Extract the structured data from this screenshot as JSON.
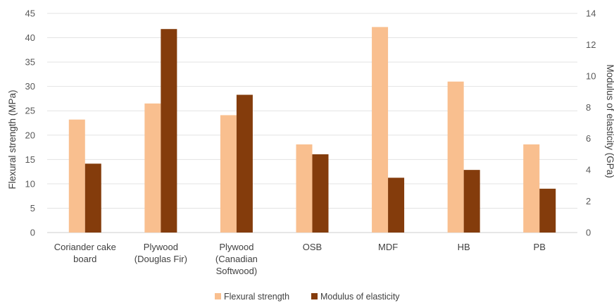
{
  "chart_data": {
    "type": "bar",
    "categories": [
      [
        "Coriander cake",
        "board"
      ],
      [
        "Plywood",
        "(Douglas Fir)"
      ],
      [
        "Plywood",
        "(Canadian",
        "Softwood)"
      ],
      [
        "OSB"
      ],
      [
        "MDF"
      ],
      [
        "HB"
      ],
      [
        "PB"
      ]
    ],
    "series": [
      {
        "name": "Flexural strength",
        "axis": "left",
        "color": "#F9BF8F",
        "values": [
          23.2,
          26.5,
          24.1,
          18.1,
          42.2,
          31.0,
          18.1
        ]
      },
      {
        "name": "Modulus of elasticity",
        "axis": "right",
        "color": "#843C0C",
        "values": [
          4.4,
          13.0,
          8.8,
          5.0,
          3.5,
          4.0,
          2.8
        ]
      }
    ],
    "ylabel": "Flexural strength (MPa)",
    "ylabel_right": "Modulus of elasticity (GPa)",
    "ylim": [
      0,
      45
    ],
    "ylim_right": [
      0,
      14
    ],
    "yticks": [
      0,
      5,
      10,
      15,
      20,
      25,
      30,
      35,
      40,
      45
    ],
    "yticks_right": [
      0,
      2,
      4,
      6,
      8,
      10,
      12,
      14
    ],
    "grid": true,
    "legend_position": "bottom"
  }
}
